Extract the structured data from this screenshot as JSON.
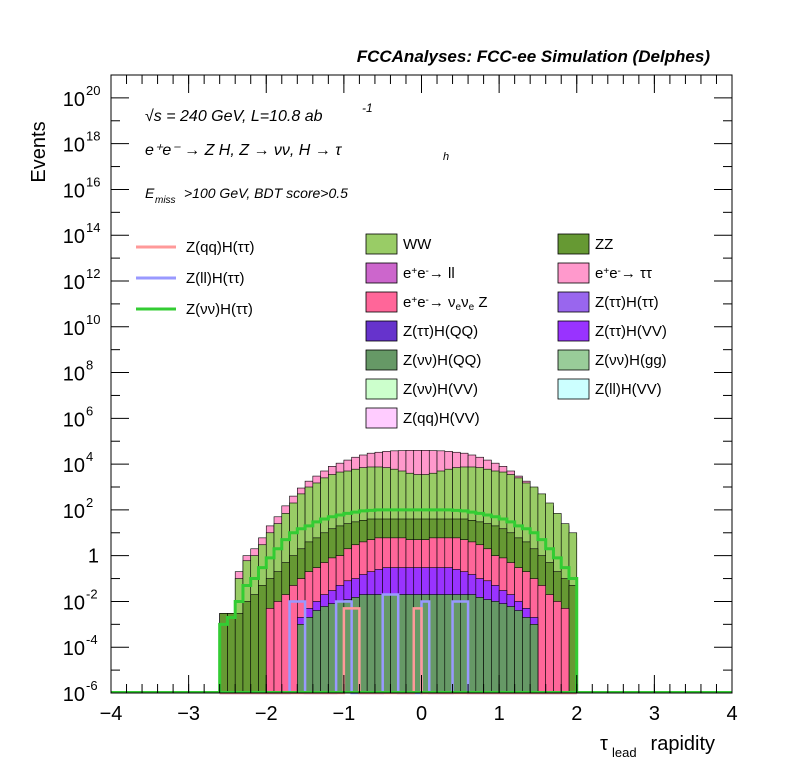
{
  "header": {
    "title": "FCCAnalyses: FCC-ee Simulation (Delphes)"
  },
  "annotations": {
    "energy_prefix": "√s = 240 GeV, L=10.8 ab",
    "energy_exp": "-1",
    "process": "e⁺e⁻ → Z H, Z → νν, H → τ",
    "process_sub": "h",
    "selection_prefix": "E",
    "selection_sub": "miss",
    "selection_suffix": ">100 GeV, BDT score>0.5"
  },
  "colors": {
    "WW": "#99cc66",
    "ZZ": "#669933",
    "ee_ll": "#cc66cc",
    "ee_tautau": "#ff99cc",
    "ee_nunuZ": "#ff6699",
    "tautau_tautau": "#9966ee",
    "tautau_QQ": "#6633cc",
    "tautau_VV": "#9933ff",
    "nunu_QQ": "#669966",
    "nunu_gg": "#99cc99",
    "nunu_VV": "#ccffcc",
    "ll_VV": "#ccffff",
    "qq_VV": "#ffccff",
    "sig_qq": "#ff9999",
    "sig_ll": "#9999ff",
    "sig_nunu": "#33cc33"
  },
  "chart_data": {
    "type": "bar",
    "title": "FCCAnalyses: FCC-ee Simulation (Delphes)",
    "xlabel": "τlead rapidity",
    "xlabel_main": "τ",
    "xlabel_sub": "lead",
    "xlabel_suffix": " rapidity",
    "ylabel": "Events",
    "xlim": [
      -4,
      4
    ],
    "ylim": [
      1e-06,
      1e+21
    ],
    "yscale": "log",
    "x_ticks": [
      "−4",
      "−3",
      "−2",
      "−1",
      "0",
      "1",
      "2",
      "3",
      "4"
    ],
    "y_ticks": [
      {
        "base": "10",
        "exp": "20",
        "value": 1e+20
      },
      {
        "base": "10",
        "exp": "18",
        "value": 1e+18
      },
      {
        "base": "10",
        "exp": "16",
        "value": 1e+16
      },
      {
        "base": "10",
        "exp": "14",
        "value": 100000000000000.0
      },
      {
        "base": "10",
        "exp": "12",
        "value": 1000000000000.0
      },
      {
        "base": "10",
        "exp": "10",
        "value": 10000000000.0
      },
      {
        "base": "10",
        "exp": "8",
        "value": 100000000.0
      },
      {
        "base": "10",
        "exp": "6",
        "value": 1000000.0
      },
      {
        "base": "10",
        "exp": "4",
        "value": 10000.0
      },
      {
        "base": "10",
        "exp": "2",
        "value": 100.0
      },
      {
        "base": "1",
        "exp": "",
        "value": 1
      },
      {
        "base": "10",
        "exp": "-2",
        "value": 0.01
      },
      {
        "base": "10",
        "exp": "-4",
        "value": 0.0001
      },
      {
        "base": "10",
        "exp": "-6",
        "value": 1e-06
      }
    ],
    "stack_legend": [
      {
        "key": "WW",
        "parts": [
          [
            "WW",
            ""
          ]
        ]
      },
      {
        "key": "ZZ",
        "parts": [
          [
            "ZZ",
            ""
          ]
        ]
      },
      {
        "key": "ee_ll",
        "parts": [
          [
            "e",
            ""
          ],
          [
            "+",
            "sup"
          ],
          [
            "e",
            ""
          ],
          [
            "-",
            "sup"
          ],
          [
            "→ ll",
            ""
          ]
        ]
      },
      {
        "key": "ee_tautau",
        "parts": [
          [
            "e",
            ""
          ],
          [
            "+",
            "sup"
          ],
          [
            "e",
            ""
          ],
          [
            "-",
            "sup"
          ],
          [
            "→ ττ",
            ""
          ]
        ]
      },
      {
        "key": "ee_nunuZ",
        "parts": [
          [
            "e",
            ""
          ],
          [
            "+",
            "sup"
          ],
          [
            "e",
            ""
          ],
          [
            "-",
            "sup"
          ],
          [
            "→ ν",
            ""
          ],
          [
            "e",
            "sub"
          ],
          [
            "ν",
            ""
          ],
          [
            "e",
            "sub"
          ],
          [
            " Z",
            ""
          ]
        ]
      },
      {
        "key": "tautau_tautau",
        "parts": [
          [
            "Z(ττ)H(ττ)",
            ""
          ]
        ]
      },
      {
        "key": "tautau_QQ",
        "parts": [
          [
            "Z(ττ)H(QQ)",
            ""
          ]
        ]
      },
      {
        "key": "tautau_VV",
        "parts": [
          [
            "Z(ττ)H(VV)",
            ""
          ]
        ]
      },
      {
        "key": "nunu_QQ",
        "parts": [
          [
            "Z(νν)H(QQ)",
            ""
          ]
        ]
      },
      {
        "key": "nunu_gg",
        "parts": [
          [
            "Z(νν)H(gg)",
            ""
          ]
        ]
      },
      {
        "key": "nunu_VV",
        "parts": [
          [
            "Z(νν)H(VV)",
            ""
          ]
        ]
      },
      {
        "key": "ll_VV",
        "parts": [
          [
            "Z(ll)H(VV)",
            ""
          ]
        ]
      },
      {
        "key": "qq_VV",
        "parts": [
          [
            "Z(qq)H(VV)",
            ""
          ]
        ]
      }
    ],
    "signal_legend": [
      {
        "key": "sig_qq",
        "label": "Z(qq)H(ττ)"
      },
      {
        "key": "sig_ll",
        "label": "Z(ll)H(ττ)"
      },
      {
        "key": "sig_nunu",
        "label": "Z(νν)H(ττ)"
      }
    ],
    "bin_edges": [
      -2.6,
      -2.5,
      -2.4,
      -2.3,
      -2.2,
      -2.1,
      -2.0,
      -1.9,
      -1.8,
      -1.7,
      -1.6,
      -1.5,
      -1.4,
      -1.3,
      -1.2,
      -1.1,
      -1.0,
      -0.9,
      -0.8,
      -0.7,
      -0.6,
      -0.5,
      -0.4,
      -0.3,
      -0.2,
      -0.1,
      0.0,
      0.1,
      0.2,
      0.3,
      0.4,
      0.5,
      0.6,
      0.7,
      0.8,
      0.9,
      1.0,
      1.1,
      1.2,
      1.3,
      1.4,
      1.5,
      1.6,
      1.7,
      1.8,
      1.9,
      2.0
    ],
    "stack_tops": [
      {
        "key": "ee_tautau",
        "values": [
          0.003,
          0.003,
          0.2,
          1,
          2,
          6,
          20,
          50,
          150,
          400,
          900,
          1800,
          3000,
          5000,
          8000,
          11000,
          15000,
          20000,
          25000,
          30000,
          33000,
          36000,
          38000,
          39000,
          40000,
          40000,
          40000,
          39000,
          38000,
          36000,
          33000,
          30000,
          25000,
          20000,
          15000,
          11000,
          8000,
          5000,
          3000,
          1800,
          900,
          400,
          150,
          50,
          20,
          6
        ]
      },
      {
        "key": "WW",
        "values": [
          0.003,
          0.003,
          0.1,
          0.6,
          1,
          3,
          10,
          25,
          70,
          200,
          500,
          1000,
          1500,
          2500,
          3500,
          4500,
          5000,
          6000,
          7000,
          7500,
          7500,
          7000,
          6000,
          5000,
          4000,
          3500,
          3500,
          4000,
          5000,
          6000,
          7000,
          7500,
          7500,
          7000,
          6000,
          5000,
          4500,
          3500,
          2500,
          1500,
          1000,
          500,
          200,
          70,
          25,
          10
        ]
      },
      {
        "key": "ZZ",
        "values": [
          0.003,
          0.003,
          0.003,
          0.01,
          0.02,
          0.05,
          0.1,
          0.2,
          0.5,
          1,
          2,
          4,
          6,
          10,
          15,
          20,
          25,
          30,
          35,
          40,
          40,
          40,
          40,
          40,
          40,
          40,
          40,
          40,
          40,
          40,
          40,
          40,
          35,
          30,
          25,
          20,
          15,
          10,
          6,
          4,
          2,
          1,
          0.5,
          0.2,
          0.1,
          0.05
        ]
      },
      {
        "key": "ee_nunuZ",
        "values": [
          0,
          0,
          0,
          0,
          0,
          0,
          0.005,
          0.01,
          0.02,
          0.05,
          0.1,
          0.2,
          0.3,
          0.5,
          0.8,
          1,
          2,
          3,
          4,
          5,
          6,
          6,
          6,
          6,
          5,
          5,
          5,
          6,
          6,
          6,
          6,
          5,
          4,
          3,
          2,
          1,
          0.8,
          0.5,
          0.3,
          0.2,
          0.1,
          0.05,
          0.02,
          0.01,
          0.005,
          0
        ]
      },
      {
        "key": "tautau_VV",
        "values": [
          0,
          0,
          0,
          0,
          0,
          0,
          0,
          0,
          0,
          0,
          0.002,
          0.005,
          0.01,
          0.02,
          0.03,
          0.05,
          0.08,
          0.1,
          0.15,
          0.2,
          0.25,
          0.3,
          0.3,
          0.3,
          0.3,
          0.3,
          0.3,
          0.3,
          0.3,
          0.3,
          0.25,
          0.2,
          0.15,
          0.1,
          0.08,
          0.05,
          0.03,
          0.02,
          0.01,
          0.005,
          0.002,
          0,
          0,
          0,
          0,
          0
        ]
      },
      {
        "key": "nunu_QQ",
        "values": [
          0,
          0,
          0,
          0,
          0,
          0,
          0,
          0,
          0,
          0,
          0.001,
          0.002,
          0.004,
          0.006,
          0.008,
          0.01,
          0.012,
          0.015,
          0.02,
          0.02,
          0.02,
          0.02,
          0.02,
          0.02,
          0.02,
          0.02,
          0.02,
          0.02,
          0.02,
          0.02,
          0.02,
          0.02,
          0.02,
          0.015,
          0.012,
          0.01,
          0.008,
          0.006,
          0.004,
          0.002,
          0.001,
          0,
          0,
          0,
          0,
          0
        ]
      }
    ],
    "signals": [
      {
        "key": "sig_nunu",
        "values": [
          0.001,
          0.002,
          0.01,
          0.05,
          0.1,
          0.3,
          0.8,
          2,
          5,
          10,
          15,
          20,
          30,
          40,
          50,
          60,
          70,
          80,
          90,
          95,
          100,
          100,
          100,
          100,
          100,
          100,
          100,
          100,
          100,
          100,
          95,
          90,
          80,
          70,
          60,
          50,
          40,
          30,
          20,
          15,
          10,
          5,
          2,
          0.8,
          0.3,
          0.1
        ]
      },
      {
        "key": "sig_ll",
        "values": [
          0,
          0,
          0,
          0,
          0,
          0,
          0,
          0,
          0,
          0.01,
          0.01,
          0,
          0,
          0,
          0,
          0.01,
          0.01,
          0,
          0,
          0,
          0,
          0.02,
          0.02,
          0,
          0,
          0,
          0.01,
          0,
          0,
          0,
          0.01,
          0.01,
          0,
          0,
          0,
          0,
          0,
          0,
          0,
          0,
          0,
          0,
          0,
          0,
          0,
          0
        ]
      },
      {
        "key": "sig_qq",
        "values": [
          0,
          0,
          0,
          0,
          0,
          0,
          0,
          0,
          0,
          0,
          0,
          0,
          0,
          0,
          0,
          0,
          0.005,
          0.005,
          0,
          0,
          0,
          0,
          0,
          0,
          0,
          0.005,
          0,
          0,
          0,
          0,
          0,
          0,
          0,
          0,
          0,
          0,
          0,
          0,
          0,
          0,
          0,
          0,
          0,
          0,
          0,
          0
        ]
      }
    ]
  }
}
